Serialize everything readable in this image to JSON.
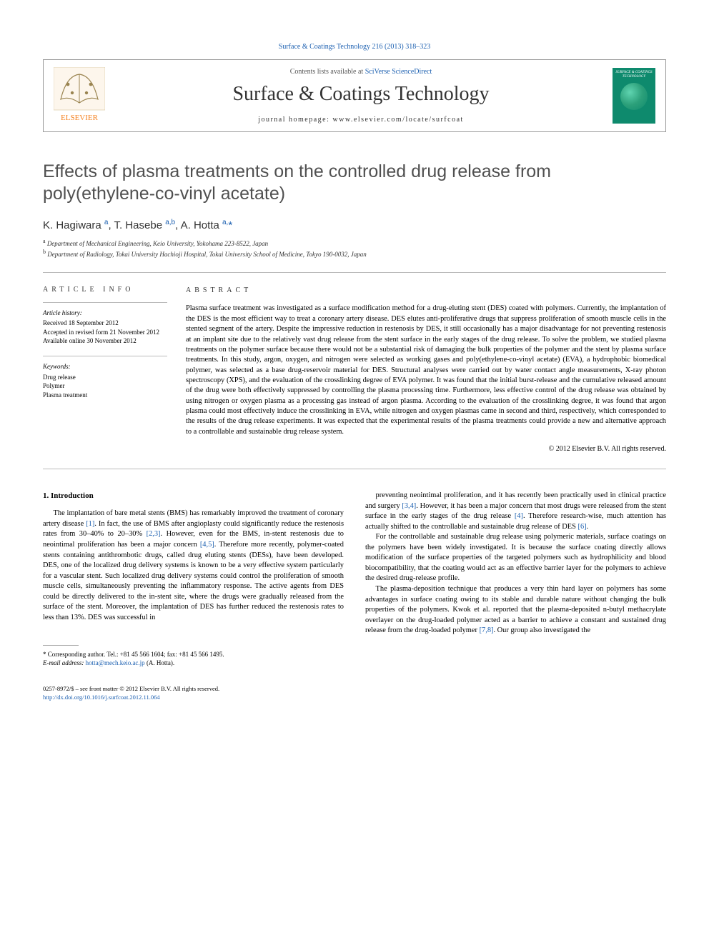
{
  "top_link": "Surface & Coatings Technology 216 (2013) 318–323",
  "header": {
    "contents_prefix": "Contents lists available at ",
    "contents_link": "SciVerse ScienceDirect",
    "journal": "Surface & Coatings Technology",
    "homepage_line": "journal homepage: www.elsevier.com/locate/surfcoat",
    "cover_text": "SURFACE & COATINGS TECHNOLOGY"
  },
  "article": {
    "title": "Effects of plasma treatments on the controlled drug release from poly(ethylene-co-vinyl acetate)",
    "authors_html": "K. Hagiwara <sup>a</sup>, T. Hasebe <sup>a,b</sup>, A. Hotta <sup>a,</sup><span class='star'>*</span>",
    "affiliations": [
      {
        "sup": "a",
        "text": "Department of Mechanical Engineering, Keio University, Yokohama 223-8522, Japan"
      },
      {
        "sup": "b",
        "text": "Department of Radiology, Tokai University Hachioji Hospital, Tokai University School of Medicine, Tokyo 190-0032, Japan"
      }
    ]
  },
  "info": {
    "heading": "article info",
    "history_label": "Article history:",
    "history": [
      "Received 18 September 2012",
      "Accepted in revised form 21 November 2012",
      "Available online 30 November 2012"
    ],
    "keywords_label": "Keywords:",
    "keywords": [
      "Drug release",
      "Polymer",
      "Plasma treatment"
    ]
  },
  "abstract": {
    "heading": "abstract",
    "text": "Plasma surface treatment was investigated as a surface modification method for a drug-eluting stent (DES) coated with polymers. Currently, the implantation of the DES is the most efficient way to treat a coronary artery disease. DES elutes anti-proliferative drugs that suppress proliferation of smooth muscle cells in the stented segment of the artery. Despite the impressive reduction in restenosis by DES, it still occasionally has a major disadvantage for not preventing restenosis at an implant site due to the relatively vast drug release from the stent surface in the early stages of the drug release. To solve the problem, we studied plasma treatments on the polymer surface because there would not be a substantial risk of damaging the bulk properties of the polymer and the stent by plasma surface treatments. In this study, argon, oxygen, and nitrogen were selected as working gases and poly(ethylene-co-vinyl acetate) (EVA), a hydrophobic biomedical polymer, was selected as a base drug-reservoir material for DES. Structural analyses were carried out by water contact angle measurements, X-ray photon spectroscopy (XPS), and the evaluation of the crosslinking degree of EVA polymer. It was found that the initial burst-release and the cumulative released amount of the drug were both effectively suppressed by controlling the plasma processing time. Furthermore, less effective control of the drug release was obtained by using nitrogen or oxygen plasma as a processing gas instead of argon plasma. According to the evaluation of the crosslinking degree, it was found that argon plasma could most effectively induce the crosslinking in EVA, while nitrogen and oxygen plasmas came in second and third, respectively, which corresponded to the results of the drug release experiments. It was expected that the experimental results of the plasma treatments could provide a new and alternative approach to a controllable and sustainable drug release system.",
    "copyright": "© 2012 Elsevier B.V. All rights reserved."
  },
  "intro": {
    "heading": "1. Introduction",
    "col1_p1": "The implantation of bare metal stents (BMS) has remarkably improved the treatment of coronary artery disease [1]. In fact, the use of BMS after angioplasty could significantly reduce the restenosis rates from 30–40% to 20–30% [2,3]. However, even for the BMS, in-stent restenosis due to neointimal proliferation has been a major concern [4,5]. Therefore more recently, polymer-coated stents containing antithrombotic drugs, called drug eluting stents (DESs), have been developed. DES, one of the localized drug delivery systems is known to be a very effective system particularly for a vascular stent. Such localized drug delivery systems could control the proliferation of smooth muscle cells, simultaneously preventing the inflammatory response. The active agents from DES could be directly delivered to the in-stent site, where the drugs were gradually released from the surface of the stent. Moreover, the implantation of DES has further reduced the restenosis rates to less than 13%. DES was successful in",
    "col2_p1": "preventing neointimal proliferation, and it has recently been practically used in clinical practice and surgery [3,4]. However, it has been a major concern that most drugs were released from the stent surface in the early stages of the drug release [4]. Therefore research-wise, much attention has actually shifted to the controllable and sustainable drug release of DES [6].",
    "col2_p2": "For the controllable and sustainable drug release using polymeric materials, surface coatings on the polymers have been widely investigated. It is because the surface coating directly allows modification of the surface properties of the targeted polymers such as hydrophilicity and blood biocompatibility, that the coating would act as an effective barrier layer for the polymers to achieve the desired drug-release profile.",
    "col2_p3": "The plasma-deposition technique that produces a very thin hard layer on polymers has some advantages in surface coating owing to its stable and durable nature without changing the bulk properties of the polymers. Kwok et al. reported that the plasma-deposited n-butyl methacrylate overlayer on the drug-loaded polymer acted as a barrier to achieve a constant and sustained drug release from the drug-loaded polymer [7,8]. Our group also investigated the"
  },
  "footnotes": {
    "corr": "* Corresponding author. Tel.: +81 45 566 1604; fax: +81 45 566 1495.",
    "email_label": "E-mail address: ",
    "email": "hotta@mech.keio.ac.jp",
    "email_suffix": " (A. Hotta)."
  },
  "footer": {
    "line1": "0257-8972/$ – see front matter © 2012 Elsevier B.V. All rights reserved.",
    "doi": "http://dx.doi.org/10.1016/j.surfcoat.2012.11.064"
  },
  "refs": {
    "r1": "[1]",
    "r23": "[2,3]",
    "r45": "[4,5]",
    "r34": "[3,4]",
    "r4": "[4]",
    "r6": "[6]",
    "r78": "[7,8]"
  },
  "colors": {
    "link": "#1b5fb0",
    "logo_orange": "#f58220",
    "logo_grey": "#888",
    "cover_green": "#0e8a6d"
  }
}
